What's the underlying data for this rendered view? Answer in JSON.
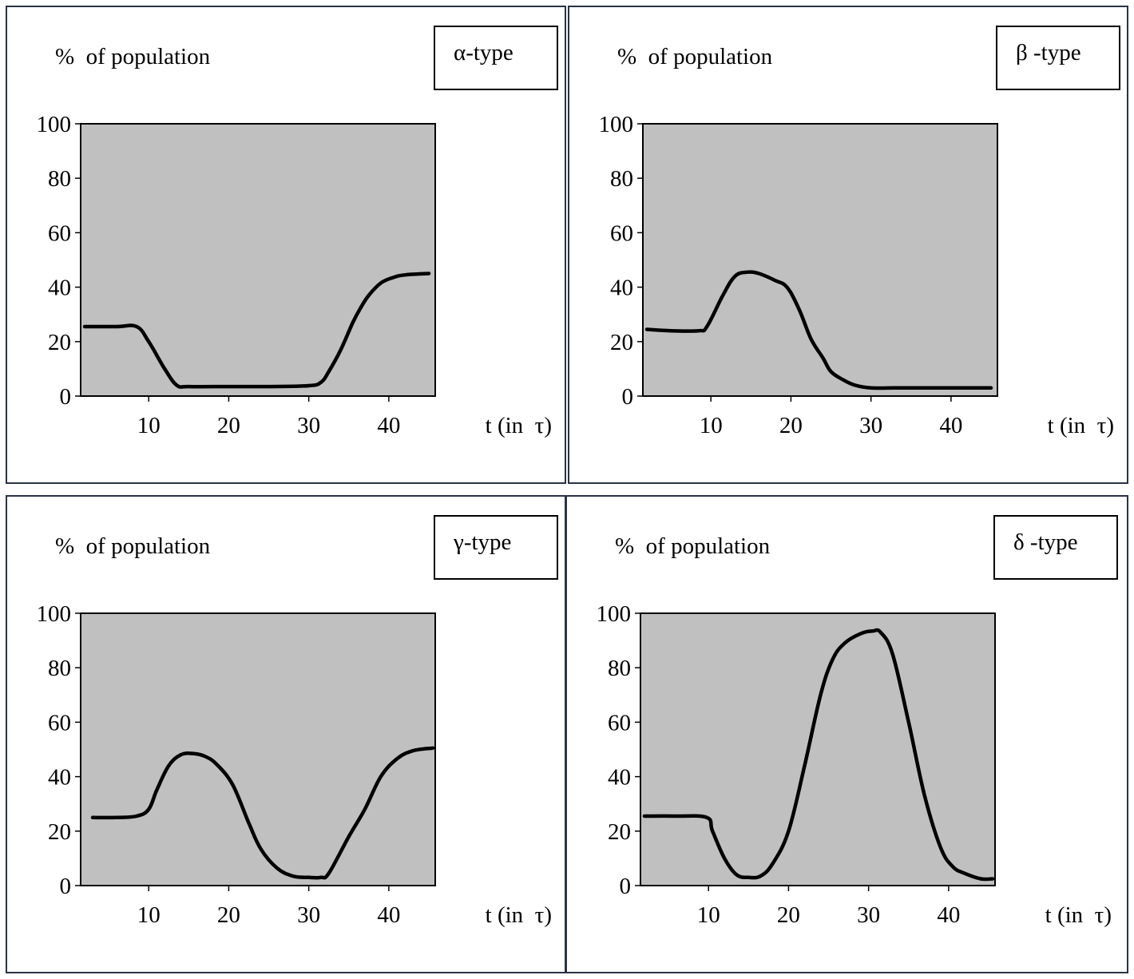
{
  "chart_data": [
    {
      "type": "line",
      "ylabel": "% of population",
      "xlabel": "t (in τ)",
      "legend": "α-type",
      "legend_placement": "top-right",
      "xlim": [
        1.5,
        45.8
      ],
      "ylim": [
        0,
        100
      ],
      "xticks": [
        "10",
        "20",
        "30",
        "40"
      ],
      "yticks": [
        "0",
        "20",
        "40",
        "60",
        "80",
        "100"
      ],
      "series": [
        {
          "x": [
            2,
            6,
            8.5,
            10,
            12,
            13.5,
            15,
            20,
            25,
            30,
            31.5,
            32.5,
            34,
            35.5,
            36.5,
            37.5,
            39,
            40.5,
            42,
            45
          ],
          "y": [
            25.5,
            25.5,
            25.5,
            20,
            10,
            4,
            3.5,
            3.5,
            3.5,
            3.8,
            5,
            9,
            17,
            27,
            32.5,
            37,
            41.5,
            43.5,
            44.5,
            45
          ]
        }
      ]
    },
    {
      "type": "line",
      "ylabel": "% of population",
      "xlabel": "t (in τ)",
      "legend": "β -type",
      "legend_placement": "top-right",
      "xlim": [
        1.5,
        45.8
      ],
      "ylim": [
        0,
        100
      ],
      "xticks": [
        "10",
        "20",
        "30",
        "40"
      ],
      "yticks": [
        "0",
        "20",
        "40",
        "60",
        "80",
        "100"
      ],
      "series": [
        {
          "x": [
            2,
            5,
            8.5,
            9.5,
            11.5,
            13,
            14.5,
            16,
            18,
            19.5,
            21,
            22.5,
            24,
            25,
            26.5,
            28,
            30,
            33,
            38,
            45
          ],
          "y": [
            24.5,
            24,
            24,
            25.5,
            37,
            44,
            45.5,
            45,
            42.5,
            40,
            32,
            21,
            14,
            9,
            6,
            4,
            3,
            3,
            3,
            3
          ]
        }
      ]
    },
    {
      "type": "line",
      "ylabel": "% of population",
      "xlabel": "t (in τ)",
      "legend": "γ-type",
      "legend_placement": "top-right",
      "xlim": [
        1.5,
        45.8
      ],
      "ylim": [
        0,
        100
      ],
      "xticks": [
        "10",
        "20",
        "30",
        "40"
      ],
      "yticks": [
        "0",
        "20",
        "40",
        "60",
        "80",
        "100"
      ],
      "series": [
        {
          "x": [
            3,
            6,
            8.5,
            10,
            11,
            12.5,
            14,
            15.5,
            17,
            18.5,
            20.5,
            22.5,
            24,
            26,
            28,
            30,
            31.5,
            32.5,
            35,
            37,
            39,
            41,
            43,
            45.5
          ],
          "y": [
            25,
            25,
            25.5,
            28,
            35,
            44,
            48,
            48.5,
            47.5,
            44.5,
            37,
            23,
            13.5,
            6.5,
            3.5,
            3,
            3,
            4.5,
            18,
            28,
            40,
            46.5,
            49.5,
            50.5
          ]
        }
      ]
    },
    {
      "type": "line",
      "ylabel": "% of population",
      "xlabel": "t (in τ)",
      "legend": "δ -type",
      "legend_placement": "top-right",
      "xlim": [
        1.5,
        45.8
      ],
      "ylim": [
        0,
        100
      ],
      "xticks": [
        "10",
        "20",
        "30",
        "40"
      ],
      "yticks": [
        "0",
        "20",
        "40",
        "60",
        "80",
        "100"
      ],
      "series": [
        {
          "x": [
            2,
            6,
            9.8,
            10.5,
            12,
            13.5,
            15,
            16.5,
            18,
            20,
            22,
            24,
            25.5,
            27,
            29,
            30.5,
            31.5,
            33,
            35,
            37,
            39,
            40.5,
            42,
            44,
            45.5
          ],
          "y": [
            25.5,
            25.5,
            25,
            20,
            10,
            4,
            3,
            3.5,
            8,
            20,
            44,
            70,
            83,
            89,
            92.5,
            93.5,
            93,
            85,
            60,
            33,
            14,
            7,
            4.5,
            2.5,
            2.5
          ]
        }
      ]
    }
  ]
}
